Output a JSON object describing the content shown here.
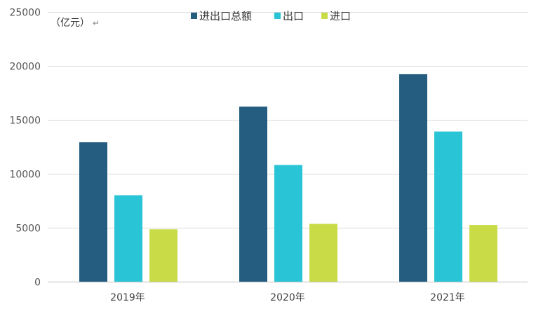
{
  "chart_data": {
    "type": "bar",
    "unit_label": "（亿元）",
    "unit_mark": "↵",
    "categories": [
      "2019年",
      "2020年",
      "2021年"
    ],
    "series": [
      {
        "name": "进出口总额",
        "color": "#245D7F",
        "values": [
          12900,
          16200,
          19200
        ]
      },
      {
        "name": "出口",
        "color": "#29C4D6",
        "values": [
          8000,
          10800,
          13900
        ]
      },
      {
        "name": "进口",
        "color": "#C9DC47",
        "values": [
          4850,
          5350,
          5250
        ]
      }
    ],
    "ylim": [
      0,
      25000
    ],
    "yticks": [
      0,
      5000,
      10000,
      15000,
      20000,
      25000
    ],
    "grid": true,
    "legend_position": "top"
  }
}
